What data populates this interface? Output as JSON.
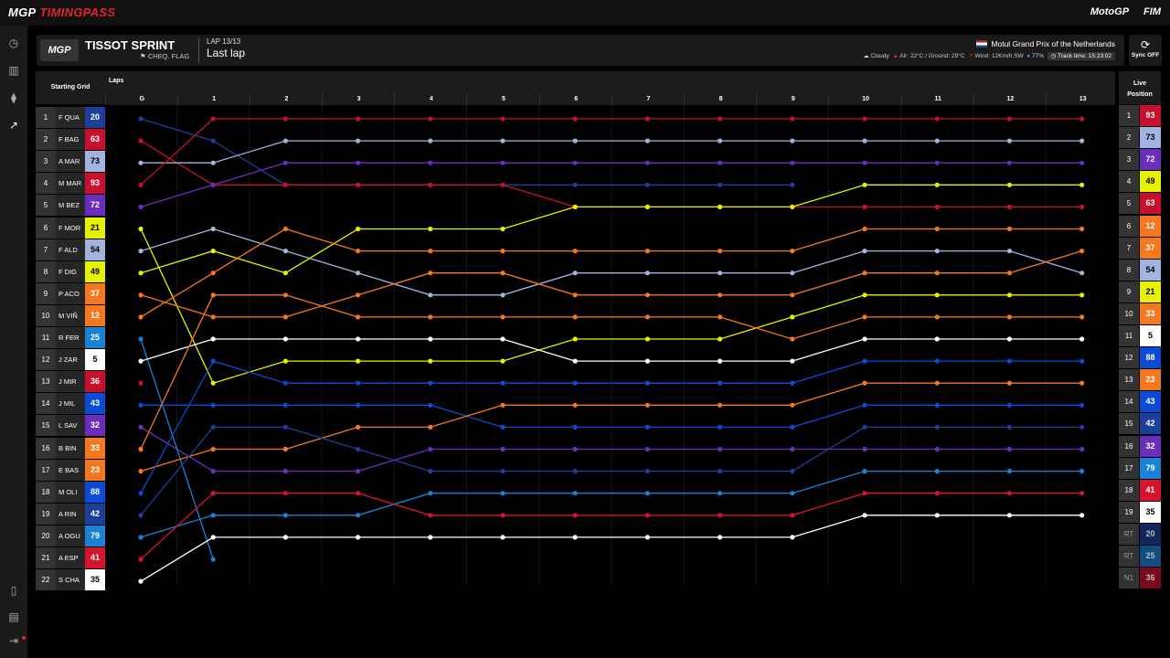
{
  "app": {
    "brand_main": "MGP",
    "brand_sub": "TIMINGPASS",
    "motogp_logo": "MotoGP",
    "fim_logo": "FIM"
  },
  "sidebar_icons": [
    "stopwatch-icon",
    "bar-chart-icon",
    "sliders-icon",
    "trend-icon",
    "document-icon",
    "notification-icon",
    "logout-icon"
  ],
  "header": {
    "logo": "MGP",
    "title": "TISSOT SPRINT",
    "flag": "CHEQ. FLAG",
    "lap": "LAP 13/13",
    "last_lap": "Last lap",
    "event": "Motul Grand Prix of the Netherlands",
    "weather": "Cloudy",
    "air": "Air: 22°C / Ground: 29°C",
    "wind": "Wind: 12Km/h SW",
    "humidity": "77%",
    "track_time": "Track time: 15:23:02"
  },
  "sync": {
    "label": "Sync OFF"
  },
  "labels": {
    "starting_grid": "Starting Grid",
    "laps": "Laps",
    "live": "Live",
    "position": "Position"
  },
  "lap_headers": [
    "G",
    "1",
    "2",
    "3",
    "4",
    "5",
    "6",
    "7",
    "8",
    "9",
    "10",
    "11",
    "12",
    "13"
  ],
  "starting_grid": [
    {
      "pos": "1",
      "name": "F QUA",
      "num": "20"
    },
    {
      "pos": "2",
      "name": "F BAG",
      "num": "63"
    },
    {
      "pos": "3",
      "name": "A MAR",
      "num": "73"
    },
    {
      "pos": "4",
      "name": "M MAR",
      "num": "93"
    },
    {
      "pos": "5",
      "name": "M BEZ",
      "num": "72"
    },
    {
      "pos": "6",
      "name": "F MOR",
      "num": "21"
    },
    {
      "pos": "7",
      "name": "F ALD",
      "num": "54"
    },
    {
      "pos": "8",
      "name": "F DIG",
      "num": "49"
    },
    {
      "pos": "9",
      "name": "P ACO",
      "num": "37"
    },
    {
      "pos": "10",
      "name": "M VIÑ",
      "num": "12"
    },
    {
      "pos": "11",
      "name": "R FER",
      "num": "25"
    },
    {
      "pos": "12",
      "name": "J ZAR",
      "num": "5"
    },
    {
      "pos": "13",
      "name": "J MIR",
      "num": "36"
    },
    {
      "pos": "14",
      "name": "J MIL",
      "num": "43"
    },
    {
      "pos": "15",
      "name": "L SAV",
      "num": "32"
    },
    {
      "pos": "16",
      "name": "B BIN",
      "num": "33"
    },
    {
      "pos": "17",
      "name": "E BAS",
      "num": "23"
    },
    {
      "pos": "18",
      "name": "M OLI",
      "num": "88"
    },
    {
      "pos": "19",
      "name": "A RIN",
      "num": "42"
    },
    {
      "pos": "20",
      "name": "A OGU",
      "num": "79"
    },
    {
      "pos": "21",
      "name": "A ESP",
      "num": "41"
    },
    {
      "pos": "22",
      "name": "S CHA",
      "num": "35"
    }
  ],
  "live_position": [
    {
      "pos": "1",
      "num": "93"
    },
    {
      "pos": "2",
      "num": "73"
    },
    {
      "pos": "3",
      "num": "72"
    },
    {
      "pos": "4",
      "num": "49"
    },
    {
      "pos": "5",
      "num": "63"
    },
    {
      "pos": "6",
      "num": "12"
    },
    {
      "pos": "7",
      "num": "37"
    },
    {
      "pos": "8",
      "num": "54"
    },
    {
      "pos": "9",
      "num": "21"
    },
    {
      "pos": "10",
      "num": "33"
    },
    {
      "pos": "11",
      "num": "5"
    },
    {
      "pos": "12",
      "num": "88"
    },
    {
      "pos": "13",
      "num": "23"
    },
    {
      "pos": "14",
      "num": "43"
    },
    {
      "pos": "15",
      "num": "42"
    },
    {
      "pos": "16",
      "num": "32"
    },
    {
      "pos": "17",
      "num": "79"
    },
    {
      "pos": "18",
      "num": "41"
    },
    {
      "pos": "19",
      "num": "35"
    },
    {
      "pos": "RT",
      "num": "20"
    },
    {
      "pos": "RT",
      "num": "25"
    },
    {
      "pos": "N1",
      "num": "36"
    }
  ],
  "rider_colors": {
    "20": "#1e3f99",
    "63": "#c8102e",
    "73": "#a3b3e0",
    "93": "#c8102e",
    "72": "#6a2ebd",
    "21": "#e6f200",
    "54": "#a3b3e0",
    "49": "#e6f200",
    "37": "#f5781f",
    "12": "#f5781f",
    "25": "#1a82d6",
    "5": "#ffffff",
    "36": "#c8102e",
    "43": "#0a4bd8",
    "32": "#6a2ebd",
    "33": "#f5781f",
    "23": "#f5781f",
    "88": "#0a4bd8",
    "42": "#1e3f99",
    "79": "#1a82d6",
    "41": "#d7142b",
    "35": "#ffffff"
  },
  "chart_data": {
    "type": "line",
    "x": [
      "G",
      "1",
      "2",
      "3",
      "4",
      "5",
      "6",
      "7",
      "8",
      "9",
      "10",
      "11",
      "12",
      "13"
    ],
    "y_meaning": "race position",
    "series": [
      {
        "name": "20",
        "values": [
          1,
          2,
          4,
          4,
          4,
          4,
          4,
          4,
          4,
          4,
          null,
          null,
          null,
          null
        ]
      },
      {
        "name": "63",
        "values": [
          2,
          4,
          4,
          4,
          4,
          4,
          5,
          5,
          5,
          5,
          5,
          5,
          5,
          5
        ]
      },
      {
        "name": "73",
        "values": [
          3,
          3,
          2,
          2,
          2,
          2,
          2,
          2,
          2,
          2,
          2,
          2,
          2,
          2
        ]
      },
      {
        "name": "93",
        "values": [
          4,
          1,
          1,
          1,
          1,
          1,
          1,
          1,
          1,
          1,
          1,
          1,
          1,
          1
        ]
      },
      {
        "name": "72",
        "values": [
          5,
          4,
          3,
          3,
          3,
          3,
          3,
          3,
          3,
          3,
          3,
          3,
          3,
          3
        ]
      },
      {
        "name": "21",
        "values": [
          6,
          13,
          12,
          12,
          12,
          12,
          11,
          11,
          11,
          10,
          9,
          9,
          9,
          9
        ]
      },
      {
        "name": "54",
        "values": [
          7,
          6,
          7,
          8,
          9,
          9,
          8,
          8,
          8,
          8,
          7,
          7,
          7,
          8
        ]
      },
      {
        "name": "49",
        "values": [
          8,
          7,
          8,
          6,
          6,
          6,
          5,
          5,
          5,
          5,
          4,
          4,
          4,
          4
        ]
      },
      {
        "name": "37",
        "values": [
          9,
          10,
          10,
          9,
          8,
          8,
          9,
          9,
          9,
          9,
          8,
          8,
          8,
          7
        ]
      },
      {
        "name": "12",
        "values": [
          10,
          8,
          6,
          7,
          7,
          7,
          7,
          7,
          7,
          7,
          6,
          6,
          6,
          6
        ]
      },
      {
        "name": "25",
        "values": [
          11,
          21,
          null,
          null,
          null,
          null,
          null,
          null,
          null,
          null,
          null,
          null,
          null,
          null
        ]
      },
      {
        "name": "5",
        "values": [
          12,
          11,
          11,
          11,
          11,
          11,
          12,
          12,
          12,
          12,
          11,
          11,
          11,
          11
        ]
      },
      {
        "name": "36",
        "values": [
          13,
          null,
          null,
          null,
          null,
          null,
          null,
          null,
          null,
          null,
          null,
          null,
          null,
          null
        ]
      },
      {
        "name": "43",
        "values": [
          14,
          14,
          14,
          14,
          14,
          15,
          15,
          15,
          15,
          15,
          14,
          14,
          14,
          14
        ]
      },
      {
        "name": "32",
        "values": [
          15,
          17,
          17,
          17,
          16,
          16,
          16,
          16,
          16,
          16,
          16,
          16,
          16,
          16
        ]
      },
      {
        "name": "33",
        "values": [
          16,
          9,
          9,
          10,
          10,
          10,
          10,
          10,
          10,
          11,
          10,
          10,
          10,
          10
        ]
      },
      {
        "name": "23",
        "values": [
          17,
          16,
          16,
          15,
          15,
          14,
          14,
          14,
          14,
          14,
          13,
          13,
          13,
          13
        ]
      },
      {
        "name": "88",
        "values": [
          18,
          12,
          13,
          13,
          13,
          13,
          13,
          13,
          13,
          13,
          12,
          12,
          12,
          12
        ]
      },
      {
        "name": "42",
        "values": [
          19,
          15,
          15,
          16,
          17,
          17,
          17,
          17,
          17,
          17,
          15,
          15,
          15,
          15
        ]
      },
      {
        "name": "79",
        "values": [
          20,
          19,
          19,
          19,
          18,
          18,
          18,
          18,
          18,
          18,
          17,
          17,
          17,
          17
        ]
      },
      {
        "name": "41",
        "values": [
          21,
          18,
          18,
          18,
          19,
          19,
          19,
          19,
          19,
          19,
          18,
          18,
          18,
          18
        ]
      },
      {
        "name": "35",
        "values": [
          22,
          20,
          20,
          20,
          20,
          20,
          20,
          20,
          20,
          20,
          19,
          19,
          19,
          19
        ]
      }
    ]
  }
}
